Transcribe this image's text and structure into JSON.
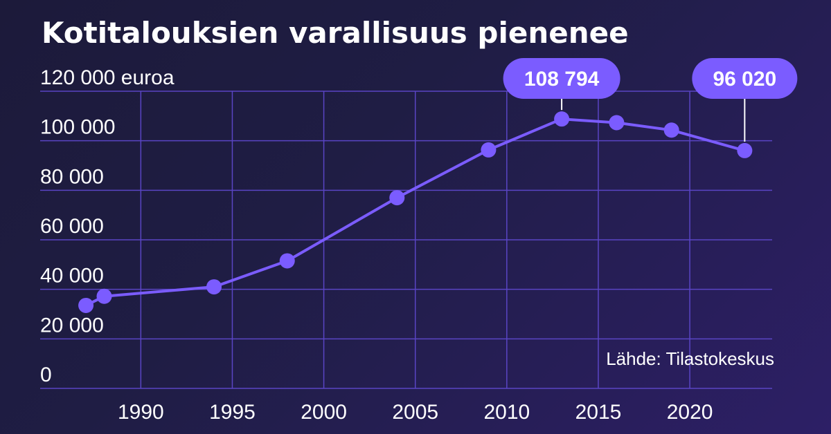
{
  "chart_data": {
    "type": "line",
    "title": "Kotitalouksien varallisuus pienenee",
    "ylabel": "euroa",
    "xlabel": "",
    "ylim": [
      0,
      120000
    ],
    "xlim": [
      1984.5,
      2024.5
    ],
    "yticks": [
      0,
      20000,
      40000,
      60000,
      80000,
      100000,
      120000
    ],
    "ytick_labels": [
      "0",
      "20 000",
      "40 000",
      "60 000",
      "80 000",
      "100 000",
      "120 000 euroa"
    ],
    "xticks": [
      1990,
      1995,
      2000,
      2005,
      2010,
      2015,
      2020
    ],
    "xtick_labels": [
      "1990",
      "1995",
      "2000",
      "2005",
      "2010",
      "2015",
      "2020"
    ],
    "grid": true,
    "series": [
      {
        "x": [
          1987,
          1988,
          1994,
          1998,
          2004,
          2009,
          2013,
          2016,
          2019,
          2023
        ],
        "values": [
          33500,
          37200,
          41000,
          51500,
          77000,
          96300,
          108794,
          107300,
          104300,
          96020
        ]
      }
    ],
    "callouts": [
      {
        "x": 2013,
        "value": 108794,
        "label": "108 794"
      },
      {
        "x": 2023,
        "value": 96020,
        "label": "96 020"
      }
    ],
    "source": "Lähde: Tilastokeskus",
    "colors": {
      "line": "#7b5cff",
      "grid": "#5a45c4",
      "text": "#ffffff"
    }
  }
}
